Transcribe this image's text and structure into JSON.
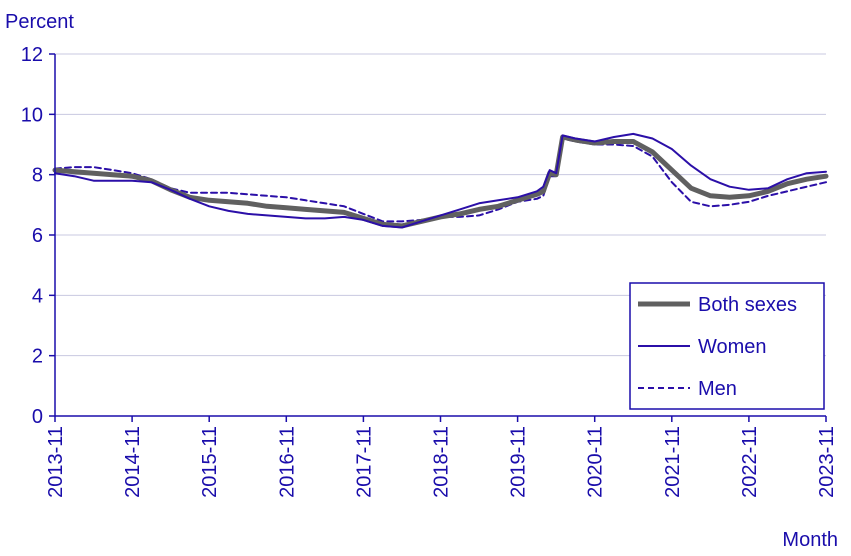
{
  "chart_data": {
    "type": "line",
    "ylabel": "Percent",
    "xlabel": "Month",
    "ylim": [
      0,
      12
    ],
    "yticks": [
      0,
      2,
      4,
      6,
      8,
      10,
      12
    ],
    "x_tick_labels": [
      "2013-11",
      "2014-11",
      "2015-11",
      "2016-11",
      "2017-11",
      "2018-11",
      "2019-11",
      "2020-11",
      "2021-11",
      "2022-11",
      "2023-11"
    ],
    "grid": "horizontal",
    "legend_position": "bottom-right",
    "colors": {
      "axis": "#1a0dab",
      "grid": "#c8c8e0",
      "text": "#1a0dab"
    },
    "series": [
      {
        "name": "Both sexes",
        "color": "#606060",
        "style": "solid-thick",
        "points": [
          [
            "2013-11",
            8.15
          ],
          [
            "2014-02",
            8.1
          ],
          [
            "2014-05",
            8.05
          ],
          [
            "2014-08",
            8.0
          ],
          [
            "2014-11",
            7.95
          ],
          [
            "2015-02",
            7.8
          ],
          [
            "2015-05",
            7.5
          ],
          [
            "2015-08",
            7.25
          ],
          [
            "2015-11",
            7.15
          ],
          [
            "2016-02",
            7.1
          ],
          [
            "2016-05",
            7.05
          ],
          [
            "2016-08",
            6.95
          ],
          [
            "2016-11",
            6.9
          ],
          [
            "2017-02",
            6.85
          ],
          [
            "2017-05",
            6.8
          ],
          [
            "2017-08",
            6.75
          ],
          [
            "2017-11",
            6.55
          ],
          [
            "2018-02",
            6.35
          ],
          [
            "2018-05",
            6.3
          ],
          [
            "2018-08",
            6.45
          ],
          [
            "2018-11",
            6.6
          ],
          [
            "2019-02",
            6.7
          ],
          [
            "2019-05",
            6.85
          ],
          [
            "2019-08",
            6.95
          ],
          [
            "2019-11",
            7.15
          ],
          [
            "2020-02",
            7.35
          ],
          [
            "2020-03",
            7.45
          ],
          [
            "2020-04",
            8.05
          ],
          [
            "2020-05",
            8.0
          ],
          [
            "2020-06",
            9.25
          ],
          [
            "2020-08",
            9.15
          ],
          [
            "2020-11",
            9.05
          ],
          [
            "2021-02",
            9.1
          ],
          [
            "2021-05",
            9.1
          ],
          [
            "2021-08",
            8.75
          ],
          [
            "2021-11",
            8.15
          ],
          [
            "2022-02",
            7.55
          ],
          [
            "2022-05",
            7.3
          ],
          [
            "2022-08",
            7.25
          ],
          [
            "2022-11",
            7.3
          ],
          [
            "2023-02",
            7.45
          ],
          [
            "2023-05",
            7.7
          ],
          [
            "2023-08",
            7.85
          ],
          [
            "2023-11",
            7.95
          ]
        ]
      },
      {
        "name": "Women",
        "color": "#2b0fa8",
        "style": "solid",
        "points": [
          [
            "2013-11",
            8.05
          ],
          [
            "2014-02",
            7.95
          ],
          [
            "2014-05",
            7.8
          ],
          [
            "2014-08",
            7.8
          ],
          [
            "2014-11",
            7.8
          ],
          [
            "2015-02",
            7.75
          ],
          [
            "2015-05",
            7.5
          ],
          [
            "2015-08",
            7.2
          ],
          [
            "2015-11",
            6.95
          ],
          [
            "2016-02",
            6.8
          ],
          [
            "2016-05",
            6.7
          ],
          [
            "2016-08",
            6.65
          ],
          [
            "2016-11",
            6.6
          ],
          [
            "2017-02",
            6.55
          ],
          [
            "2017-05",
            6.55
          ],
          [
            "2017-08",
            6.6
          ],
          [
            "2017-11",
            6.5
          ],
          [
            "2018-02",
            6.3
          ],
          [
            "2018-05",
            6.25
          ],
          [
            "2018-08",
            6.45
          ],
          [
            "2018-11",
            6.65
          ],
          [
            "2019-02",
            6.85
          ],
          [
            "2019-05",
            7.05
          ],
          [
            "2019-08",
            7.15
          ],
          [
            "2019-11",
            7.25
          ],
          [
            "2020-02",
            7.45
          ],
          [
            "2020-03",
            7.6
          ],
          [
            "2020-04",
            8.15
          ],
          [
            "2020-05",
            8.05
          ],
          [
            "2020-06",
            9.3
          ],
          [
            "2020-08",
            9.2
          ],
          [
            "2020-11",
            9.1
          ],
          [
            "2021-02",
            9.25
          ],
          [
            "2021-05",
            9.35
          ],
          [
            "2021-08",
            9.2
          ],
          [
            "2021-11",
            8.85
          ],
          [
            "2022-02",
            8.3
          ],
          [
            "2022-05",
            7.85
          ],
          [
            "2022-08",
            7.6
          ],
          [
            "2022-11",
            7.5
          ],
          [
            "2023-02",
            7.55
          ],
          [
            "2023-05",
            7.85
          ],
          [
            "2023-08",
            8.05
          ],
          [
            "2023-11",
            8.1
          ]
        ]
      },
      {
        "name": "Men",
        "color": "#2b0fa8",
        "style": "dashed",
        "points": [
          [
            "2013-11",
            8.2
          ],
          [
            "2014-02",
            8.25
          ],
          [
            "2014-05",
            8.25
          ],
          [
            "2014-08",
            8.15
          ],
          [
            "2014-11",
            8.05
          ],
          [
            "2015-02",
            7.85
          ],
          [
            "2015-05",
            7.55
          ],
          [
            "2015-08",
            7.4
          ],
          [
            "2015-11",
            7.4
          ],
          [
            "2016-02",
            7.4
          ],
          [
            "2016-05",
            7.35
          ],
          [
            "2016-08",
            7.3
          ],
          [
            "2016-11",
            7.25
          ],
          [
            "2017-02",
            7.15
          ],
          [
            "2017-05",
            7.05
          ],
          [
            "2017-08",
            6.95
          ],
          [
            "2017-11",
            6.7
          ],
          [
            "2018-02",
            6.45
          ],
          [
            "2018-05",
            6.45
          ],
          [
            "2018-08",
            6.5
          ],
          [
            "2018-11",
            6.6
          ],
          [
            "2019-02",
            6.6
          ],
          [
            "2019-05",
            6.65
          ],
          [
            "2019-08",
            6.85
          ],
          [
            "2019-11",
            7.1
          ],
          [
            "2020-02",
            7.2
          ],
          [
            "2020-03",
            7.3
          ],
          [
            "2020-04",
            7.95
          ],
          [
            "2020-05",
            7.95
          ],
          [
            "2020-06",
            9.2
          ],
          [
            "2020-08",
            9.1
          ],
          [
            "2020-11",
            9.0
          ],
          [
            "2021-02",
            9.0
          ],
          [
            "2021-05",
            8.95
          ],
          [
            "2021-08",
            8.6
          ],
          [
            "2021-11",
            7.75
          ],
          [
            "2022-02",
            7.1
          ],
          [
            "2022-05",
            6.95
          ],
          [
            "2022-08",
            7.0
          ],
          [
            "2022-11",
            7.1
          ],
          [
            "2023-02",
            7.3
          ],
          [
            "2023-05",
            7.45
          ],
          [
            "2023-08",
            7.6
          ],
          [
            "2023-11",
            7.75
          ]
        ]
      }
    ]
  }
}
